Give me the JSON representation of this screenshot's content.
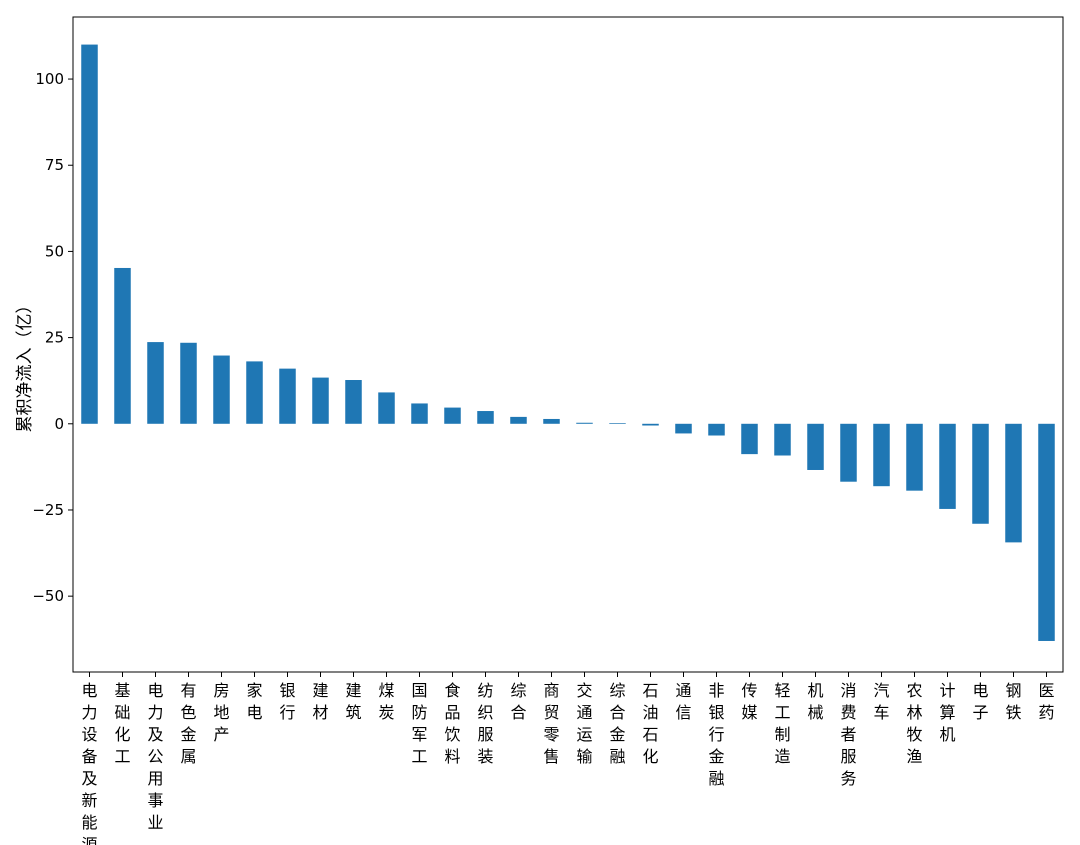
{
  "chart_data": {
    "type": "bar",
    "title": "",
    "xlabel": "",
    "ylabel": "累积净流入（亿）",
    "ylim": [
      -72,
      118
    ],
    "yticks": [
      -50,
      -25,
      0,
      25,
      50,
      75,
      100
    ],
    "ytick_labels": [
      "−50",
      "−25",
      "0",
      "25",
      "50",
      "75",
      "100"
    ],
    "grid": false,
    "legend": "none",
    "bar_color": "#1f77b4",
    "categories": [
      "电力设备及新能源",
      "基础化工",
      "电力及公用事业",
      "有色金属",
      "房地产",
      "家电",
      "银行",
      "建材",
      "建筑",
      "煤炭",
      "国防军工",
      "食品饮料",
      "纺织服装",
      "综合",
      "商贸零售",
      "交通运输",
      "综合金融",
      "石油石化",
      "通信",
      "非银行金融",
      "传媒",
      "轻工制造",
      "机械",
      "消费者服务",
      "汽车",
      "农林牧渔",
      "计算机",
      "电子",
      "钢铁",
      "医药"
    ],
    "values": [
      110,
      45.2,
      23.7,
      23.5,
      19.8,
      18.1,
      16.0,
      13.4,
      12.7,
      9.1,
      5.9,
      4.7,
      3.7,
      2.0,
      1.4,
      0.3,
      0.2,
      -0.5,
      -2.8,
      -3.4,
      -8.8,
      -9.2,
      -13.4,
      -16.8,
      -18.1,
      -19.4,
      -24.7,
      -29.0,
      -34.4,
      -63.0
    ]
  }
}
